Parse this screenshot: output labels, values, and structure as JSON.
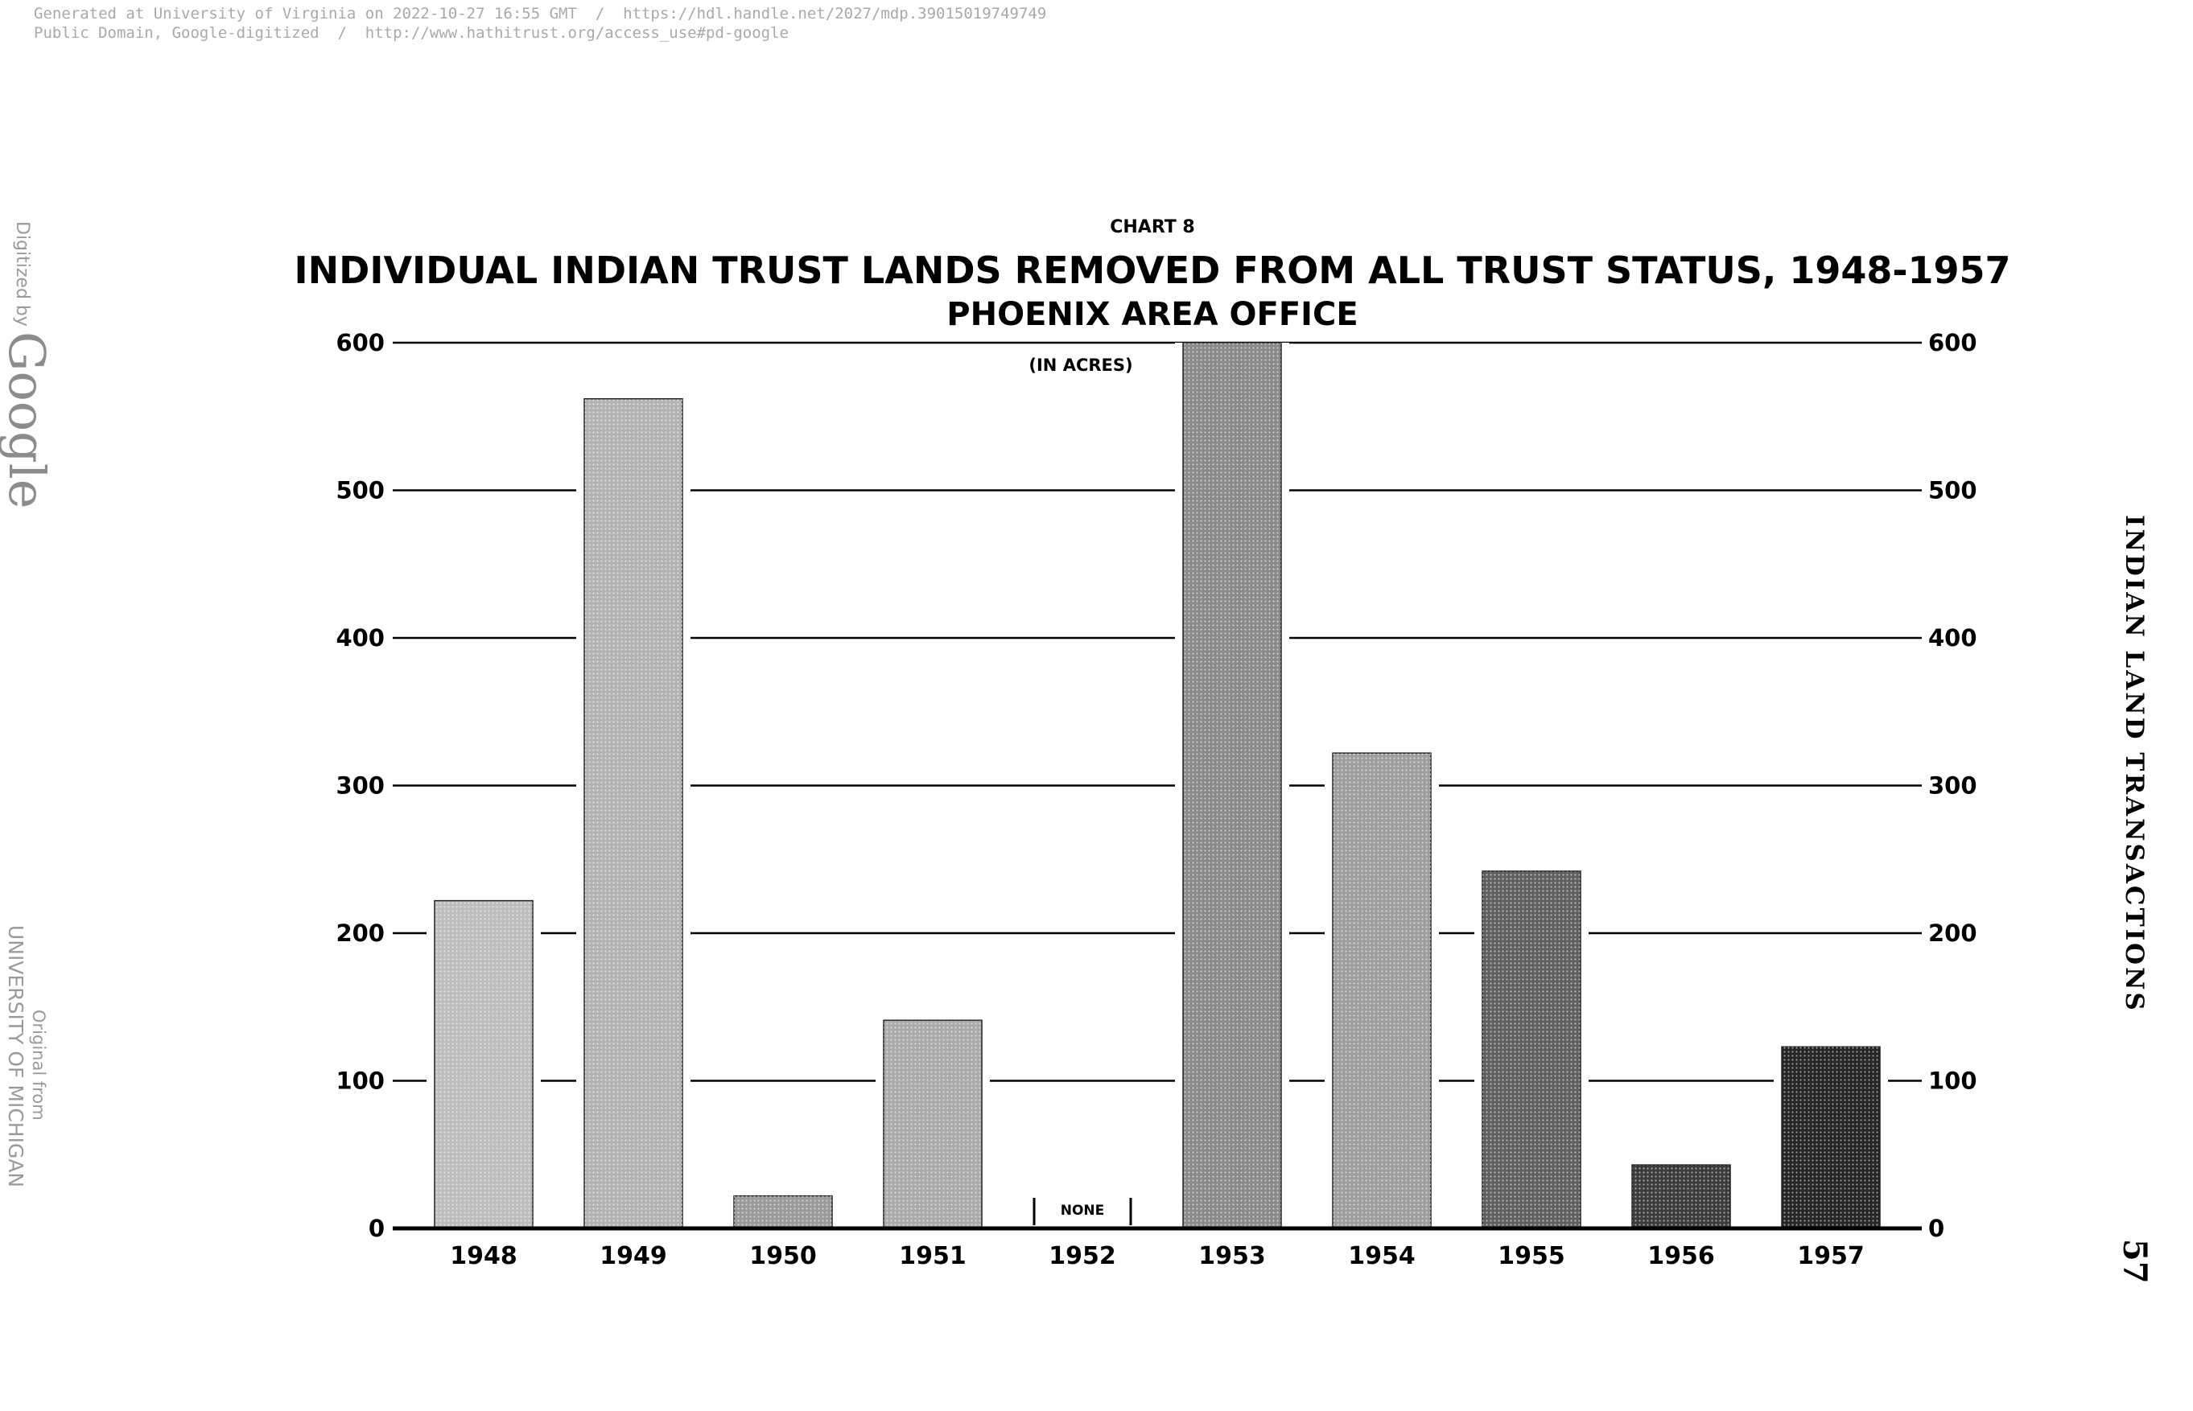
{
  "header": {
    "line1": "Generated at University of Virginia on 2022-10-27 16:55 GMT  /  https://hdl.handle.net/2027/mdp.39015019749749",
    "line2": "Public Domain, Google-digitized  /  http://www.hathitrust.org/access_use#pd-google"
  },
  "watermark": {
    "digitized_by": "Digitized by",
    "google": "Google",
    "original_from": "Original from",
    "university": "UNIVERSITY OF MICHIGAN"
  },
  "page": {
    "side_title": "INDIAN LAND TRANSACTIONS",
    "number": "57"
  },
  "chart_data": {
    "type": "bar",
    "supertitle": "CHART 8",
    "title": "INDIVIDUAL INDIAN TRUST LANDS REMOVED FROM ALL TRUST STATUS, 1948-1957",
    "subtitle": "PHOENIX AREA OFFICE",
    "unit_label": "(IN ACRES)",
    "categories": [
      "1948",
      "1949",
      "1950",
      "1951",
      "1952",
      "1953",
      "1954",
      "1955",
      "1956",
      "1957"
    ],
    "values": [
      222,
      562,
      22,
      141,
      0,
      600,
      322,
      242,
      43,
      123
    ],
    "annotations": [
      {
        "category": "1952",
        "text": "NONE"
      }
    ],
    "ylim": [
      0,
      600
    ],
    "yticks": [
      0,
      100,
      200,
      300,
      400,
      500,
      600
    ],
    "grid": true,
    "right_axis": true,
    "bar_colors": [
      "#bdbdbd",
      "#b3b3b3",
      "#9a9a9a",
      "#aaaaaa",
      "#ffffff",
      "#8a8a8a",
      "#9e9e9e",
      "#606060",
      "#3c3c3c",
      "#262626"
    ]
  }
}
